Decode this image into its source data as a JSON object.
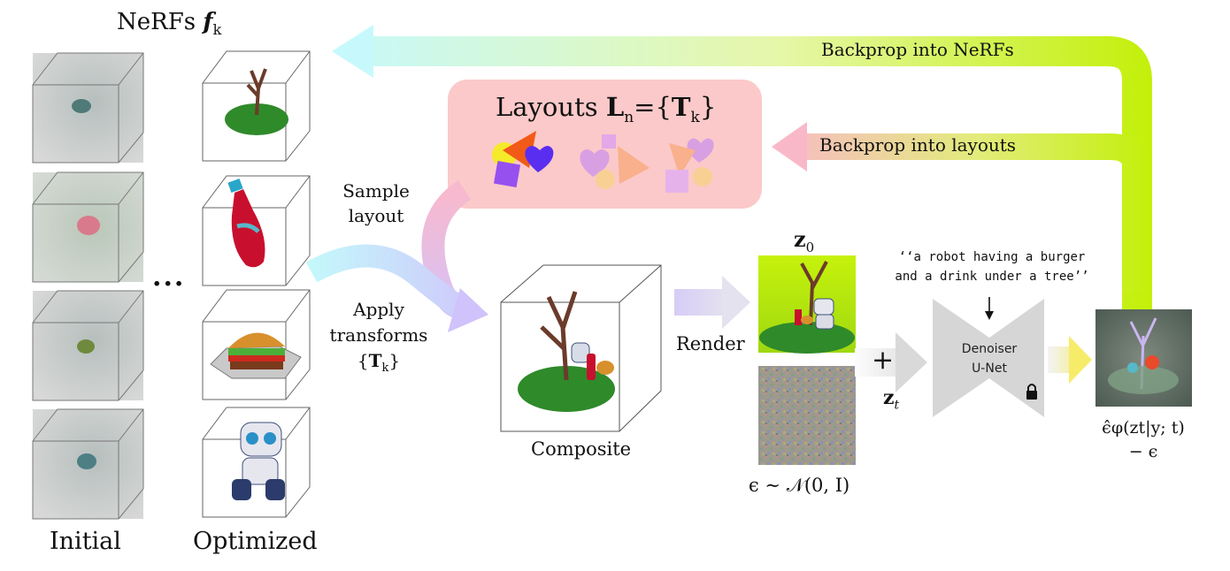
{
  "nerfs_title": "NeRFs",
  "nerfs_title_symbol": "f",
  "nerfs_title_sub": "k",
  "ellipsis": "...",
  "initial_label": "Initial",
  "optimized_label": "Optimized",
  "layouts_title": "Layouts",
  "layouts_formula_symbol": "L",
  "layouts_formula_sub": "n",
  "layouts_formula_eq": "={",
  "layouts_formula_T": "T",
  "layouts_formula_T_sub": "k",
  "layouts_formula_close": "}",
  "sample_layout_line1": "Sample",
  "sample_layout_line2": "layout",
  "apply_line1": "Apply",
  "apply_line2": "transforms",
  "apply_line3_open": "{",
  "apply_line3_T": "T",
  "apply_line3_sub": "k",
  "apply_line3_close": "}",
  "composite_label": "Composite",
  "render_label": "Render",
  "z0_symbol": "z",
  "z0_sub": "0",
  "noise_label": "ϵ ∼ 𝒩(0, I)",
  "plus": "+",
  "zt_symbol": "z",
  "zt_sub": "t",
  "prompt_line1": "‘‘a robot having a burger",
  "prompt_line2": "and a drink under a tree’’",
  "denoiser_line1": "Denoiser",
  "denoiser_line2": "U-Net",
  "output_line1": "ϵ̂φ(zt|y; t)",
  "output_line2": "− ϵ",
  "backprop_nerfs": "Backprop into NeRFs",
  "backprop_layouts": "Backprop into layouts",
  "colors": {
    "layouts_box": "#fbc9c9",
    "arrow_cyan": "#c8f8fb",
    "arrow_lime": "#c6f207",
    "arrow_pink": "#f8c3d5",
    "arrow_purple": "#d2c4fb",
    "denoiser": "#d6d6d6",
    "yellow": "#f6ea7a",
    "green_bg": "#b7f20a"
  }
}
